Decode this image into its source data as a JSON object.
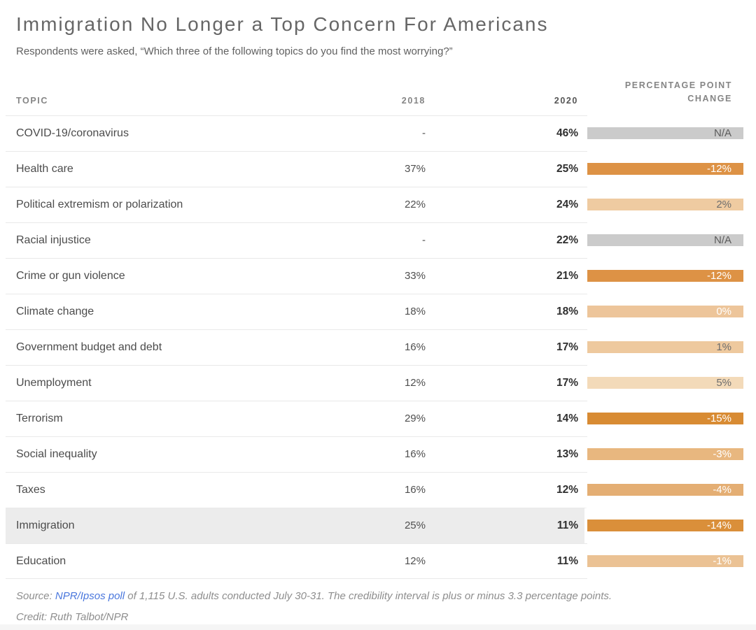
{
  "chart_data": {
    "type": "table",
    "title": "Immigration No Longer a Top Concern For Americans",
    "subtitle": "Respondents were asked, “Which three of the following topics do you find the most worrying?”",
    "columns": [
      "Topic",
      "2018",
      "2020",
      "Percentage point change"
    ],
    "rows": [
      [
        "COVID-19/coronavirus",
        "-",
        "46%",
        "N/A"
      ],
      [
        "Health care",
        "37%",
        "25%",
        "-12%"
      ],
      [
        "Political extremism or polarization",
        "22%",
        "24%",
        "2%"
      ],
      [
        "Racial injustice",
        "-",
        "22%",
        "N/A"
      ],
      [
        "Crime or gun violence",
        "33%",
        "21%",
        "-12%"
      ],
      [
        "Climate change",
        "18%",
        "18%",
        "0%"
      ],
      [
        "Government budget and debt",
        "16%",
        "17%",
        "1%"
      ],
      [
        "Unemployment",
        "12%",
        "17%",
        "5%"
      ],
      [
        "Terrorism",
        "29%",
        "14%",
        "-15%"
      ],
      [
        "Social inequality",
        "16%",
        "13%",
        "-3%"
      ],
      [
        "Taxes",
        "16%",
        "12%",
        "-4%"
      ],
      [
        "Immigration",
        "25%",
        "11%",
        "-14%"
      ],
      [
        "Education",
        "12%",
        "11%",
        "-1%"
      ]
    ],
    "layout_hints": "Change column cells shaded orange: darker = larger decrease, lighter = increase; gray = N/A; Immigration row highlighted gray"
  },
  "page": {
    "title": "Immigration No Longer a Top Concern For Americans",
    "subtitle": "Respondents were asked, “Which three of the following topics do you find the most worrying?”"
  },
  "table": {
    "columns": {
      "topic": "TOPIC",
      "y2018": "2018",
      "y2020": "2020",
      "change_line1": "PERCENTAGE POINT",
      "change_line2": "CHANGE"
    },
    "rows": [
      {
        "topic": "COVID-19/coronavirus",
        "y2018": "-",
        "y2020": "46%",
        "change": "N/A",
        "change_bg": "#cbcbcb",
        "change_fg": "#5c5c5c",
        "highlight": false
      },
      {
        "topic": "Health care",
        "y2018": "37%",
        "y2020": "25%",
        "change": "-12%",
        "change_bg": "#dd9245",
        "change_fg": "#ffffff",
        "highlight": false
      },
      {
        "topic": "Political extremism or polarization",
        "y2018": "22%",
        "y2020": "24%",
        "change": "2%",
        "change_bg": "#efcba1",
        "change_fg": "#6e6e6e",
        "highlight": false
      },
      {
        "topic": "Racial injustice",
        "y2018": "-",
        "y2020": "22%",
        "change": "N/A",
        "change_bg": "#cbcbcb",
        "change_fg": "#5c5c5c",
        "highlight": false
      },
      {
        "topic": "Crime or gun violence",
        "y2018": "33%",
        "y2020": "21%",
        "change": "-12%",
        "change_bg": "#dd9245",
        "change_fg": "#ffffff",
        "highlight": false
      },
      {
        "topic": "Climate change",
        "y2018": "18%",
        "y2020": "18%",
        "change": "0%",
        "change_bg": "#edc59a",
        "change_fg": "#ffffff",
        "highlight": false
      },
      {
        "topic": "Government budget and debt",
        "y2018": "16%",
        "y2020": "17%",
        "change": "1%",
        "change_bg": "#eec99e",
        "change_fg": "#6e6e6e",
        "highlight": false
      },
      {
        "topic": "Unemployment",
        "y2018": "12%",
        "y2020": "17%",
        "change": "5%",
        "change_bg": "#f3dab9",
        "change_fg": "#6e6e6e",
        "highlight": false
      },
      {
        "topic": "Terrorism",
        "y2018": "29%",
        "y2020": "14%",
        "change": "-15%",
        "change_bg": "#d88b33",
        "change_fg": "#ffffff",
        "highlight": false
      },
      {
        "topic": "Social inequality",
        "y2018": "16%",
        "y2020": "13%",
        "change": "-3%",
        "change_bg": "#e8b77f",
        "change_fg": "#ffffff",
        "highlight": false
      },
      {
        "topic": "Taxes",
        "y2018": "16%",
        "y2020": "12%",
        "change": "-4%",
        "change_bg": "#e4ae73",
        "change_fg": "#ffffff",
        "highlight": false
      },
      {
        "topic": "Immigration",
        "y2018": "25%",
        "y2020": "11%",
        "change": "-14%",
        "change_bg": "#da8f3a",
        "change_fg": "#ffffff",
        "highlight": true
      },
      {
        "topic": "Education",
        "y2018": "12%",
        "y2020": "11%",
        "change": "-1%",
        "change_bg": "#ebc294",
        "change_fg": "#ffffff",
        "highlight": false
      }
    ]
  },
  "footer": {
    "source_prefix": "Source: ",
    "source_link": "NPR/Ipsos poll",
    "source_rest": " of 1,115 U.S. adults conducted July 30-31. The credibility interval is plus or minus 3.3 percentage points.",
    "credit": "Credit: Ruth Talbot/NPR"
  },
  "colors": {
    "link": "#4a77dd",
    "row_separator": "#e9e9e9",
    "row_highlight": "#ececec",
    "na_cell": "#cbcbcb",
    "bottom_strip": "#f5f5f5"
  }
}
